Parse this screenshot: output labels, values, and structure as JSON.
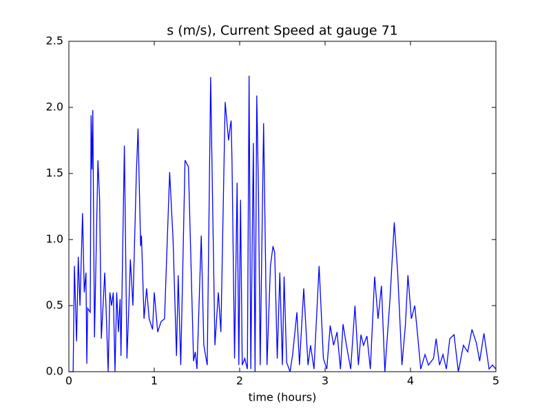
{
  "chart_data": {
    "type": "line",
    "title": "s (m/s), Current Speed at gauge 71",
    "x_label": "time (hours)",
    "x": [
      0.0,
      0.05,
      0.065,
      0.09,
      0.11,
      0.13,
      0.16,
      0.18,
      0.2,
      0.21,
      0.22,
      0.25,
      0.26,
      0.27,
      0.28,
      0.3,
      0.34,
      0.36,
      0.38,
      0.4,
      0.42,
      0.44,
      0.46,
      0.48,
      0.5,
      0.52,
      0.54,
      0.56,
      0.58,
      0.6,
      0.61,
      0.65,
      0.68,
      0.7,
      0.72,
      0.75,
      0.79,
      0.81,
      0.84,
      0.85,
      0.88,
      0.91,
      0.94,
      0.98,
      1.0,
      1.04,
      1.08,
      1.12,
      1.18,
      1.22,
      1.26,
      1.28,
      1.31,
      1.36,
      1.4,
      1.46,
      1.48,
      1.5,
      1.55,
      1.58,
      1.62,
      1.66,
      1.68,
      1.71,
      1.75,
      1.78,
      1.83,
      1.87,
      1.89,
      1.9,
      1.91,
      1.94,
      1.97,
      1.99,
      2.01,
      2.03,
      2.06,
      2.09,
      2.11,
      2.13,
      2.16,
      2.18,
      2.2,
      2.22,
      2.24,
      2.28,
      2.32,
      2.36,
      2.39,
      2.41,
      2.44,
      2.47,
      2.5,
      2.52,
      2.55,
      2.59,
      2.62,
      2.67,
      2.7,
      2.75,
      2.8,
      2.83,
      2.87,
      2.93,
      2.98,
      3.02,
      3.06,
      3.1,
      3.14,
      3.18,
      3.21,
      3.25,
      3.3,
      3.35,
      3.39,
      3.42,
      3.45,
      3.49,
      3.53,
      3.58,
      3.62,
      3.66,
      3.7,
      3.76,
      3.81,
      3.85,
      3.9,
      3.94,
      3.97,
      4.01,
      4.05,
      4.08,
      4.12,
      4.17,
      4.21,
      4.27,
      4.3,
      4.34,
      4.38,
      4.42,
      4.46,
      4.51,
      4.56,
      4.62,
      4.67,
      4.72,
      4.77,
      4.81,
      4.86,
      4.92,
      4.96,
      5.0
    ],
    "series": [
      {
        "color": "#0000ff",
        "values": [
          0,
          0,
          0.8,
          0.23,
          0.87,
          0.5,
          1.2,
          0.6,
          0.75,
          0.06,
          0.48,
          0.45,
          1.94,
          1.53,
          1.98,
          0.26,
          1.6,
          1.3,
          0.25,
          0.5,
          0.75,
          0.4,
          0,
          0.6,
          0.5,
          0.6,
          0,
          0.6,
          0.3,
          0.55,
          0.12,
          1.71,
          0.1,
          0.45,
          0.85,
          0.5,
          1.5,
          1.84,
          0.95,
          1.03,
          0.4,
          0.63,
          0.4,
          0.32,
          0.6,
          0.3,
          0.38,
          0.4,
          1.51,
          1.0,
          0.12,
          0.73,
          0.05,
          1.6,
          1.55,
          0.08,
          0.15,
          0.02,
          1.03,
          0.2,
          0.05,
          2.23,
          1.4,
          0.2,
          0.6,
          0.3,
          2.04,
          1.75,
          1.86,
          1.9,
          1.6,
          0.1,
          1.43,
          0.05,
          1.3,
          0.05,
          0.1,
          0.02,
          2.24,
          0.02,
          1.73,
          0,
          2.09,
          1.36,
          0.05,
          1.88,
          0.05,
          0.8,
          0.95,
          0.9,
          0.1,
          0.75,
          0.05,
          0.72,
          0.07,
          0,
          0.13,
          0.45,
          0.05,
          0.63,
          0.05,
          0.2,
          0.02,
          0.8,
          0.1,
          0.02,
          0.35,
          0.2,
          0.3,
          0.02,
          0.36,
          0.2,
          0.02,
          0.5,
          0.05,
          0.28,
          0.2,
          0.27,
          0.02,
          0.72,
          0.4,
          0.65,
          0,
          0.55,
          1.13,
          0.75,
          0.05,
          0.35,
          0.73,
          0.4,
          0.5,
          0.3,
          0.02,
          0.13,
          0.05,
          0.1,
          0.25,
          0.05,
          0.13,
          0.02,
          0.25,
          0.28,
          0,
          0.2,
          0.15,
          0.32,
          0.22,
          0.08,
          0.29,
          0.02,
          0.05,
          0.02
        ]
      }
    ],
    "xlim": [
      0,
      5
    ],
    "xticks": [
      0,
      1,
      2,
      3,
      4,
      5
    ],
    "ylim": [
      0,
      2.5
    ],
    "yticks": [
      {
        "value": 0,
        "label": "0.0"
      },
      0.5,
      {
        "value": 1,
        "label": "1.0"
      },
      1.5,
      {
        "value": 2,
        "label": "2.0"
      },
      2.5
    ]
  }
}
